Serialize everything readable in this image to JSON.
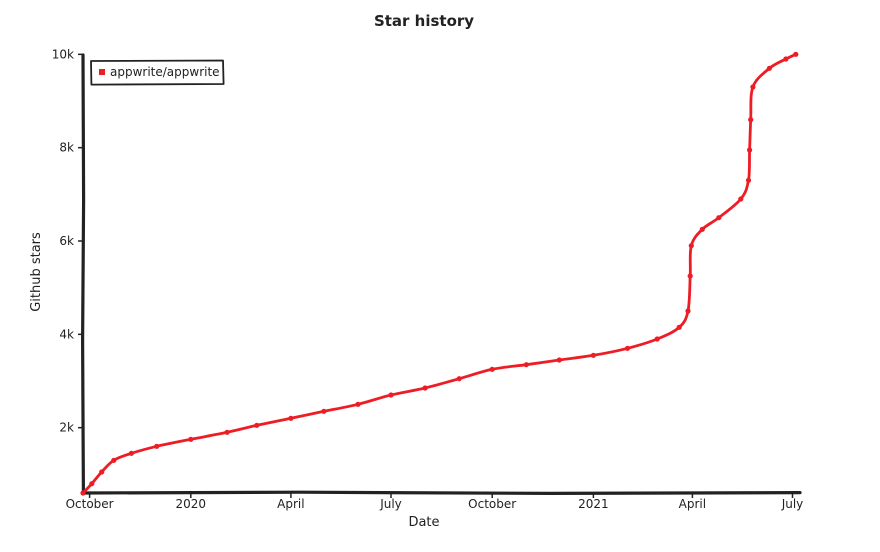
{
  "chart_data": {
    "type": "line",
    "title": "Star history",
    "xlabel": "Date",
    "ylabel": "Github stars",
    "x_ticks": [
      "October",
      "2020",
      "April",
      "July",
      "October",
      "2021",
      "April",
      "July"
    ],
    "y_ticks": [
      "2k",
      "4k",
      "6k",
      "8k",
      "10k"
    ],
    "y_tick_values": [
      2000,
      4000,
      6000,
      8000,
      10000
    ],
    "xlim": [
      "2019-09-25",
      "2021-07-06"
    ],
    "ylim": [
      600,
      10050
    ],
    "legend": "top-left",
    "grid": false,
    "series": [
      {
        "name": "appwrite/appwrite",
        "color": "#ee1c25",
        "points": [
          {
            "x": "2019-09-25",
            "y": 600
          },
          {
            "x": "2019-10-03",
            "y": 800
          },
          {
            "x": "2019-10-12",
            "y": 1050
          },
          {
            "x": "2019-10-23",
            "y": 1300
          },
          {
            "x": "2019-11-08",
            "y": 1450
          },
          {
            "x": "2019-12-01",
            "y": 1600
          },
          {
            "x": "2020-01-01",
            "y": 1750
          },
          {
            "x": "2020-02-03",
            "y": 1900
          },
          {
            "x": "2020-03-01",
            "y": 2050
          },
          {
            "x": "2020-04-01",
            "y": 2200
          },
          {
            "x": "2020-05-01",
            "y": 2350
          },
          {
            "x": "2020-06-01",
            "y": 2500
          },
          {
            "x": "2020-07-01",
            "y": 2700
          },
          {
            "x": "2020-08-01",
            "y": 2850
          },
          {
            "x": "2020-09-01",
            "y": 3050
          },
          {
            "x": "2020-10-01",
            "y": 3250
          },
          {
            "x": "2020-11-01",
            "y": 3350
          },
          {
            "x": "2020-12-01",
            "y": 3450
          },
          {
            "x": "2021-01-01",
            "y": 3550
          },
          {
            "x": "2021-02-01",
            "y": 3700
          },
          {
            "x": "2021-02-28",
            "y": 3900
          },
          {
            "x": "2021-03-20",
            "y": 4150
          },
          {
            "x": "2021-03-28",
            "y": 4500
          },
          {
            "x": "2021-03-30",
            "y": 5250
          },
          {
            "x": "2021-03-31",
            "y": 5900
          },
          {
            "x": "2021-04-10",
            "y": 6250
          },
          {
            "x": "2021-04-25",
            "y": 6500
          },
          {
            "x": "2021-05-15",
            "y": 6900
          },
          {
            "x": "2021-05-22",
            "y": 7300
          },
          {
            "x": "2021-05-23",
            "y": 7950
          },
          {
            "x": "2021-05-24",
            "y": 8600
          },
          {
            "x": "2021-05-26",
            "y": 9300
          },
          {
            "x": "2021-06-10",
            "y": 9700
          },
          {
            "x": "2021-06-25",
            "y": 9900
          },
          {
            "x": "2021-07-04",
            "y": 10000
          }
        ]
      }
    ]
  }
}
